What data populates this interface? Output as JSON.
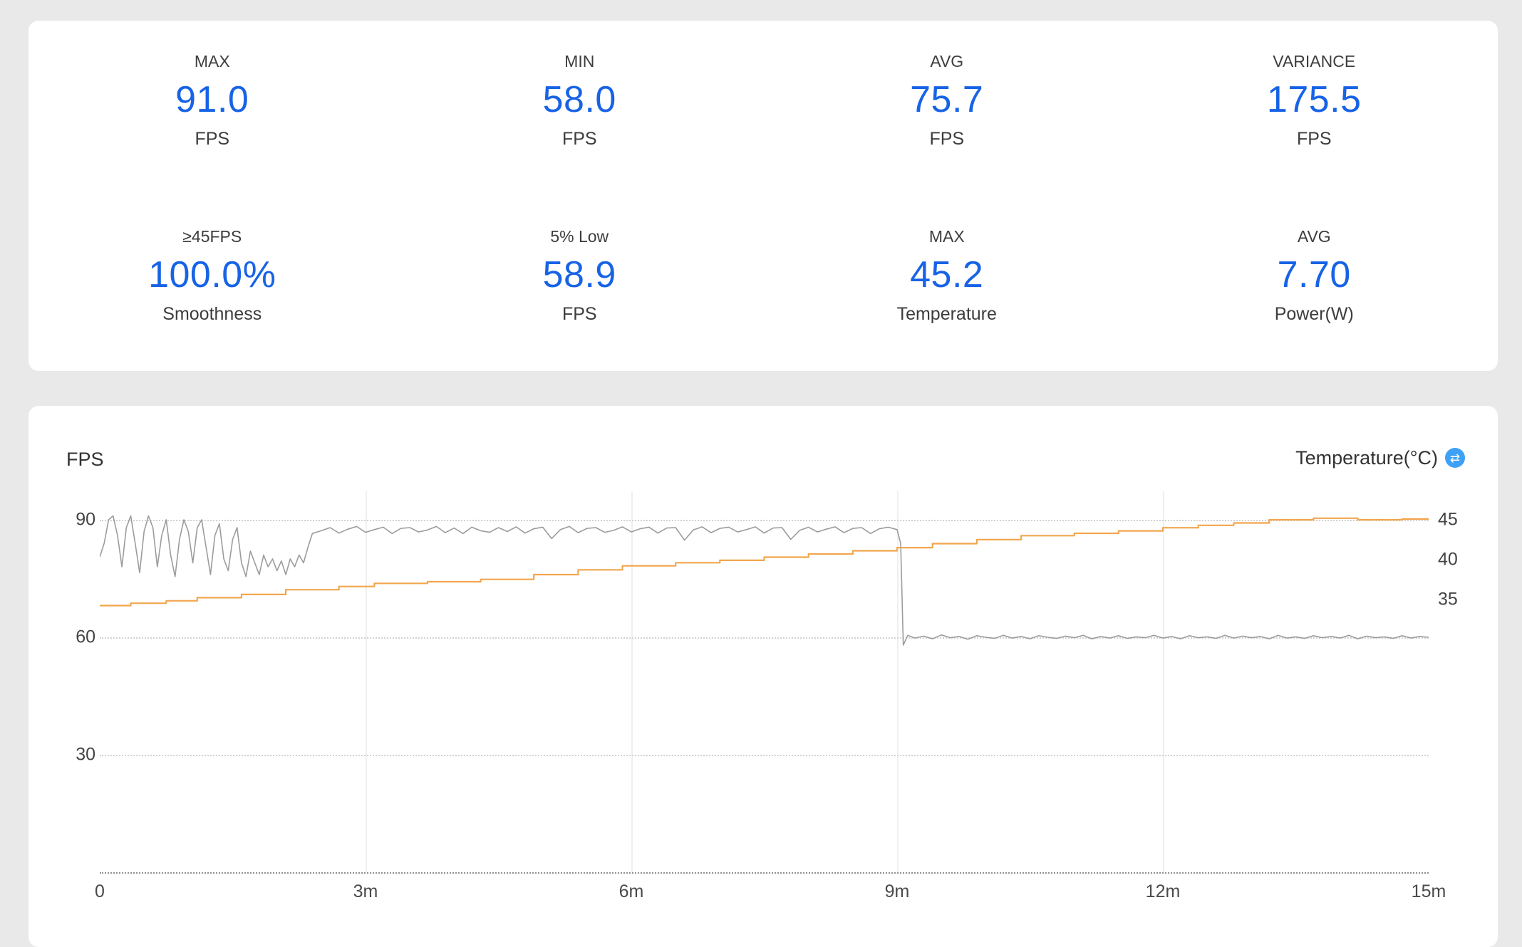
{
  "page": {
    "background": "#e9e9e9",
    "card_background": "#ffffff",
    "accent_blue": "#1763E6"
  },
  "stats": {
    "row1": [
      {
        "label": "MAX",
        "value": "91.0",
        "unit": "FPS"
      },
      {
        "label": "MIN",
        "value": "58.0",
        "unit": "FPS"
      },
      {
        "label": "AVG",
        "value": "75.7",
        "unit": "FPS"
      },
      {
        "label": "VARIANCE",
        "value": "175.5",
        "unit": "FPS"
      }
    ],
    "row2": [
      {
        "label": "≥45FPS",
        "value": "100.0%",
        "unit": "Smoothness"
      },
      {
        "label": "5% Low",
        "value": "58.9",
        "unit": "FPS"
      },
      {
        "label": "MAX",
        "value": "45.2",
        "unit": "Temperature"
      },
      {
        "label": "AVG",
        "value": "7.70",
        "unit": "Power(W)"
      }
    ]
  },
  "chart": {
    "fps_axis_label": "FPS",
    "temp_axis_label": "Temperature(°C)",
    "toggle_icon_glyph": "⇄"
  },
  "chart_data": {
    "type": "line",
    "x_axis": {
      "unit": "minutes",
      "range": [
        0,
        15
      ],
      "tick_labels": [
        "0",
        "3m",
        "6m",
        "9m",
        "12m",
        "15m"
      ],
      "tick_values": [
        0,
        3,
        6,
        9,
        12,
        15
      ]
    },
    "left_axis": {
      "label": "FPS",
      "tick_labels": [
        "90",
        "60",
        "30"
      ],
      "tick_values": [
        90,
        60,
        30
      ],
      "range": [
        0,
        97
      ]
    },
    "right_axis": {
      "label": "Temperature(°C)",
      "tick_labels": [
        "45",
        "40",
        "35"
      ],
      "tick_values": [
        45,
        40,
        35
      ]
    },
    "grid": {
      "horizontal": "dotted",
      "vertical_minutes": [
        3,
        6,
        9,
        12
      ]
    },
    "series": [
      {
        "name": "FPS",
        "axis": "left",
        "color": "#9c9c9c",
        "width": 1.6,
        "interpolation": "linear",
        "segments": [
          {
            "t0": 0,
            "dt": 0.05,
            "values": [
              80.5,
              84,
              90,
              91,
              86,
              78,
              88,
              91,
              84,
              76.5,
              87,
              91,
              88,
              78,
              86,
              90,
              81,
              75.5,
              85,
              90,
              87,
              79,
              88,
              90,
              83,
              76,
              86,
              89,
              80,
              77,
              85,
              88,
              79,
              75.5,
              82,
              79,
              76,
              81,
              78,
              80,
              77,
              79.5,
              76,
              80,
              78,
              81,
              79,
              83,
              86.5
            ]
          },
          {
            "t0": 2.5,
            "dt": 0.1,
            "values": [
              87.2,
              88,
              86.6,
              87.6,
              88.3,
              86.8,
              87.5,
              88.1,
              86.5,
              87.8,
              88,
              86.9,
              87.4,
              88.3,
              86.7,
              87.9,
              86.5,
              88.1,
              87.2,
              86.8,
              88,
              87,
              88.2,
              86.6,
              87.7,
              88.1,
              85.2,
              87.5,
              88.3,
              86.7,
              87.8,
              88,
              86.8,
              87.3,
              88.2,
              86.9,
              87.7,
              88.1,
              86.6,
              87.9,
              88,
              84.8,
              87.4,
              88.2,
              86.7,
              87.8,
              88.1,
              86.9,
              87.5,
              88.2,
              86.6,
              87.9,
              88,
              85,
              87.3,
              88.1,
              86.9,
              87.6,
              88.2,
              86.7,
              87.8,
              88,
              86.5,
              87.7,
              88.1,
              87.5
            ]
          },
          {
            "points": [
              [
                9.04,
                84
              ],
              [
                9.07,
                58
              ],
              [
                9.12,
                60.5
              ]
            ]
          },
          {
            "t0": 9.2,
            "dt": 0.1,
            "values": [
              59.8,
              60.3,
              59.6,
              60.6,
              59.9,
              60.2,
              59.5,
              60.4,
              60,
              59.7,
              60.5,
              59.8,
              60.2,
              59.6,
              60.4,
              60,
              59.7,
              60.3,
              59.9,
              60.5,
              59.6,
              60.2,
              59.8,
              60.4,
              59.7,
              60.1,
              59.9,
              60.5,
              59.8,
              60.2,
              59.6,
              60.4,
              59.9,
              60.1,
              59.7,
              60.5,
              59.8,
              60.3,
              59.9,
              60.2,
              59.6,
              60.5,
              59.8,
              60.1,
              59.7,
              60.4,
              59.9,
              60.2,
              59.8,
              60.5,
              59.6,
              60.3,
              59.9,
              60.1,
              59.7,
              60.4,
              59.8,
              60.2,
              60
            ]
          }
        ]
      },
      {
        "name": "Temperature",
        "axis": "right",
        "color": "#F2A64E",
        "width": 2.2,
        "interpolation": "step",
        "points": [
          [
            0,
            34.2
          ],
          [
            0.35,
            34.5
          ],
          [
            0.75,
            34.8
          ],
          [
            1.1,
            35.2
          ],
          [
            1.6,
            35.6
          ],
          [
            2.1,
            36.2
          ],
          [
            2.7,
            36.6
          ],
          [
            3.1,
            37
          ],
          [
            3.7,
            37.2
          ],
          [
            4.3,
            37.5
          ],
          [
            4.9,
            38.1
          ],
          [
            5.4,
            38.7
          ],
          [
            5.9,
            39.2
          ],
          [
            6.5,
            39.6
          ],
          [
            7,
            39.9
          ],
          [
            7.5,
            40.3
          ],
          [
            8,
            40.7
          ],
          [
            8.5,
            41.1
          ],
          [
            9,
            41.5
          ],
          [
            9.4,
            42
          ],
          [
            9.9,
            42.5
          ],
          [
            10.4,
            43
          ],
          [
            11,
            43.3
          ],
          [
            11.5,
            43.6
          ],
          [
            12,
            44
          ],
          [
            12.4,
            44.3
          ],
          [
            12.8,
            44.6
          ],
          [
            13.2,
            45
          ],
          [
            13.7,
            45.2
          ],
          [
            14.2,
            45
          ],
          [
            14.7,
            45.1
          ],
          [
            15,
            45.1
          ]
        ]
      }
    ]
  }
}
